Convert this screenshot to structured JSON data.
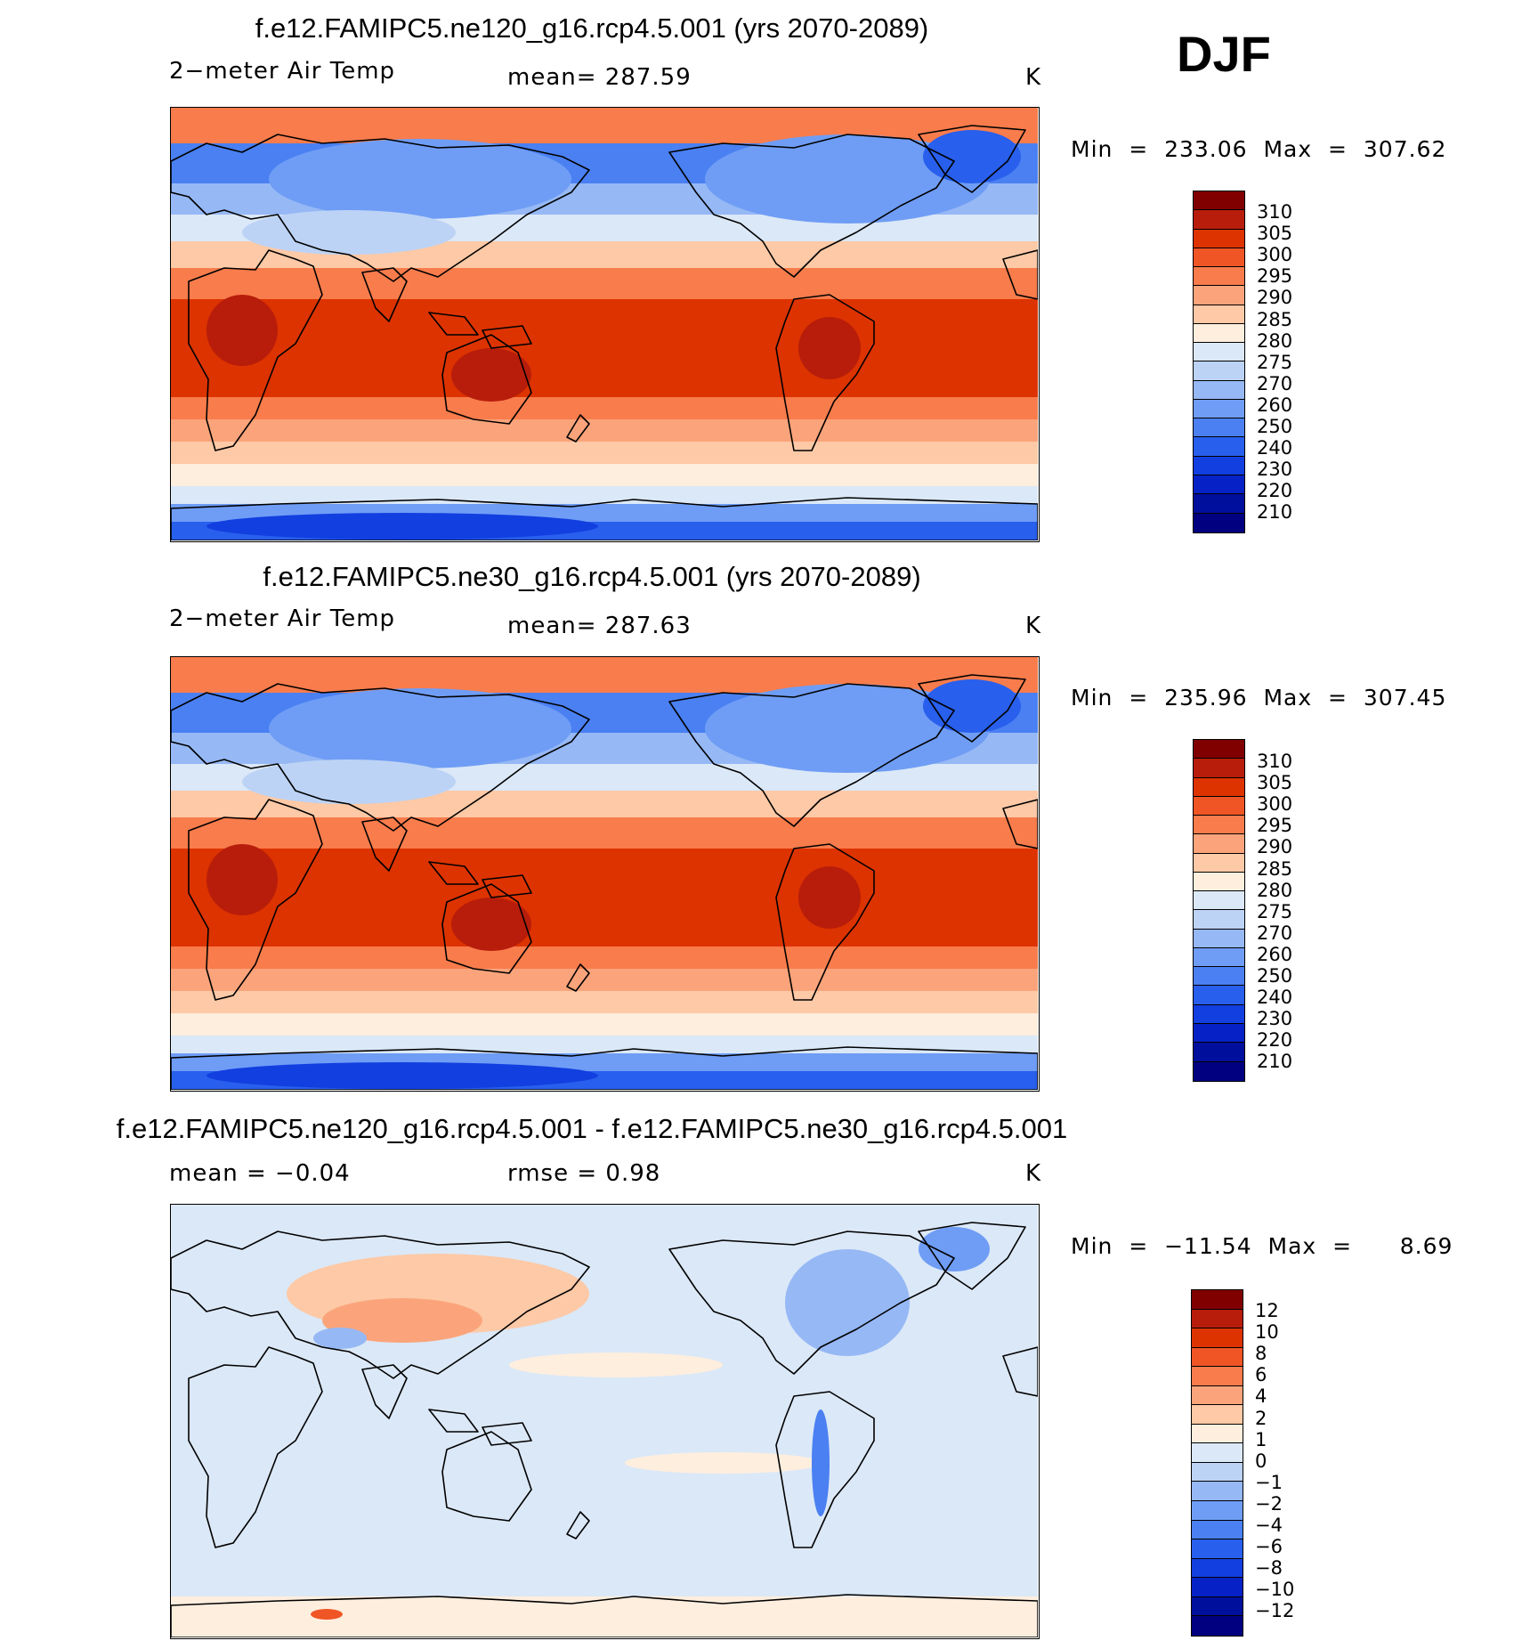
{
  "season": "DJF",
  "colors": {
    "absolute": [
      "#800000",
      "#b81d0b",
      "#dd3300",
      "#f05525",
      "#f87c4c",
      "#fba47b",
      "#fdc9a6",
      "#feeede",
      "#dbe8f7",
      "#bcd3f5",
      "#96b8f5",
      "#6f9df5",
      "#4a80f2",
      "#285fed",
      "#123fe0",
      "#0622c6",
      "#000f9c",
      "#000080"
    ],
    "difference": [
      "#800000",
      "#b81d0b",
      "#dd3300",
      "#f05525",
      "#f87c4c",
      "#fba47b",
      "#fdc9a6",
      "#feeede",
      "#dbe8f7",
      "#bcd3f5",
      "#96b8f5",
      "#6f9df5",
      "#4a80f2",
      "#285fed",
      "#123fe0",
      "#0622c6",
      "#000f9c",
      "#000080"
    ],
    "coastline": "#000000"
  },
  "panels": [
    {
      "title": "f.e12.FAMIPC5.ne120_g16.rcp4.5.001 (yrs 2070-2089)",
      "variable": "2−meter Air Temp",
      "stat": "mean=  287.59",
      "units": "K",
      "minmax": "Min  =  233.06  Max  =  307.62",
      "field": "absolute",
      "colorbar_labels": [
        "310",
        "305",
        "300",
        "295",
        "290",
        "285",
        "280",
        "275",
        "270",
        "260",
        "250",
        "240",
        "230",
        "220",
        "210"
      ]
    },
    {
      "title": "f.e12.FAMIPC5.ne30_g16.rcp4.5.001 (yrs 2070-2089)",
      "variable": "2−meter Air Temp",
      "stat": "mean=  287.63",
      "units": "K",
      "minmax": "Min  =  235.96  Max  =  307.45",
      "field": "absolute",
      "colorbar_labels": [
        "310",
        "305",
        "300",
        "295",
        "290",
        "285",
        "280",
        "275",
        "270",
        "260",
        "250",
        "240",
        "230",
        "220",
        "210"
      ]
    },
    {
      "title": "f.e12.FAMIPC5.ne120_g16.rcp4.5.001 - f.e12.FAMIPC5.ne30_g16.rcp4.5.001",
      "stat_left": "mean  =    −0.04",
      "stat_mid": "rmse  =     0.98",
      "units": "K",
      "minmax": "Min  =  −11.54  Max  =      8.69",
      "field": "difference",
      "colorbar_labels": [
        "12",
        "10",
        "8",
        "6",
        "4",
        "2",
        "1",
        "0",
        "−1",
        "−2",
        "−4",
        "−6",
        "−8",
        "−10",
        "−12"
      ]
    }
  ]
}
